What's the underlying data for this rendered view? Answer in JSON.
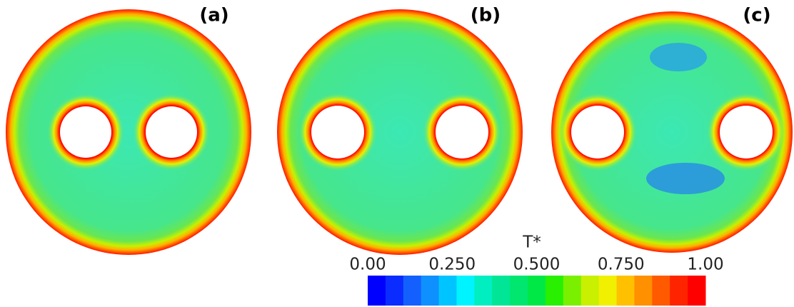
{
  "chart_data": {
    "type": "contour",
    "panels": [
      "(a)",
      "(b)",
      "(c)"
    ],
    "colorbar": {
      "title": "T*",
      "lim": [
        0,
        1
      ],
      "ticks": [
        {
          "value": 0,
          "label": "0.00"
        },
        {
          "value": 0.25,
          "label": "0.250"
        },
        {
          "value": 0.5,
          "label": "0.500"
        },
        {
          "value": 0.75,
          "label": "0.750"
        },
        {
          "value": 1,
          "label": "1.00"
        }
      ],
      "colors": [
        "#0000ff",
        "#0a2cff",
        "#1460ff",
        "#0f90ff",
        "#00c4ff",
        "#00f4ff",
        "#00eec0",
        "#00e696",
        "#00e66e",
        "#00e846",
        "#28f000",
        "#7af000",
        "#c8f000",
        "#f0f000",
        "#ffc000",
        "#ff9000",
        "#ff5a00",
        "#ff2400",
        "#ff0000"
      ]
    }
  }
}
